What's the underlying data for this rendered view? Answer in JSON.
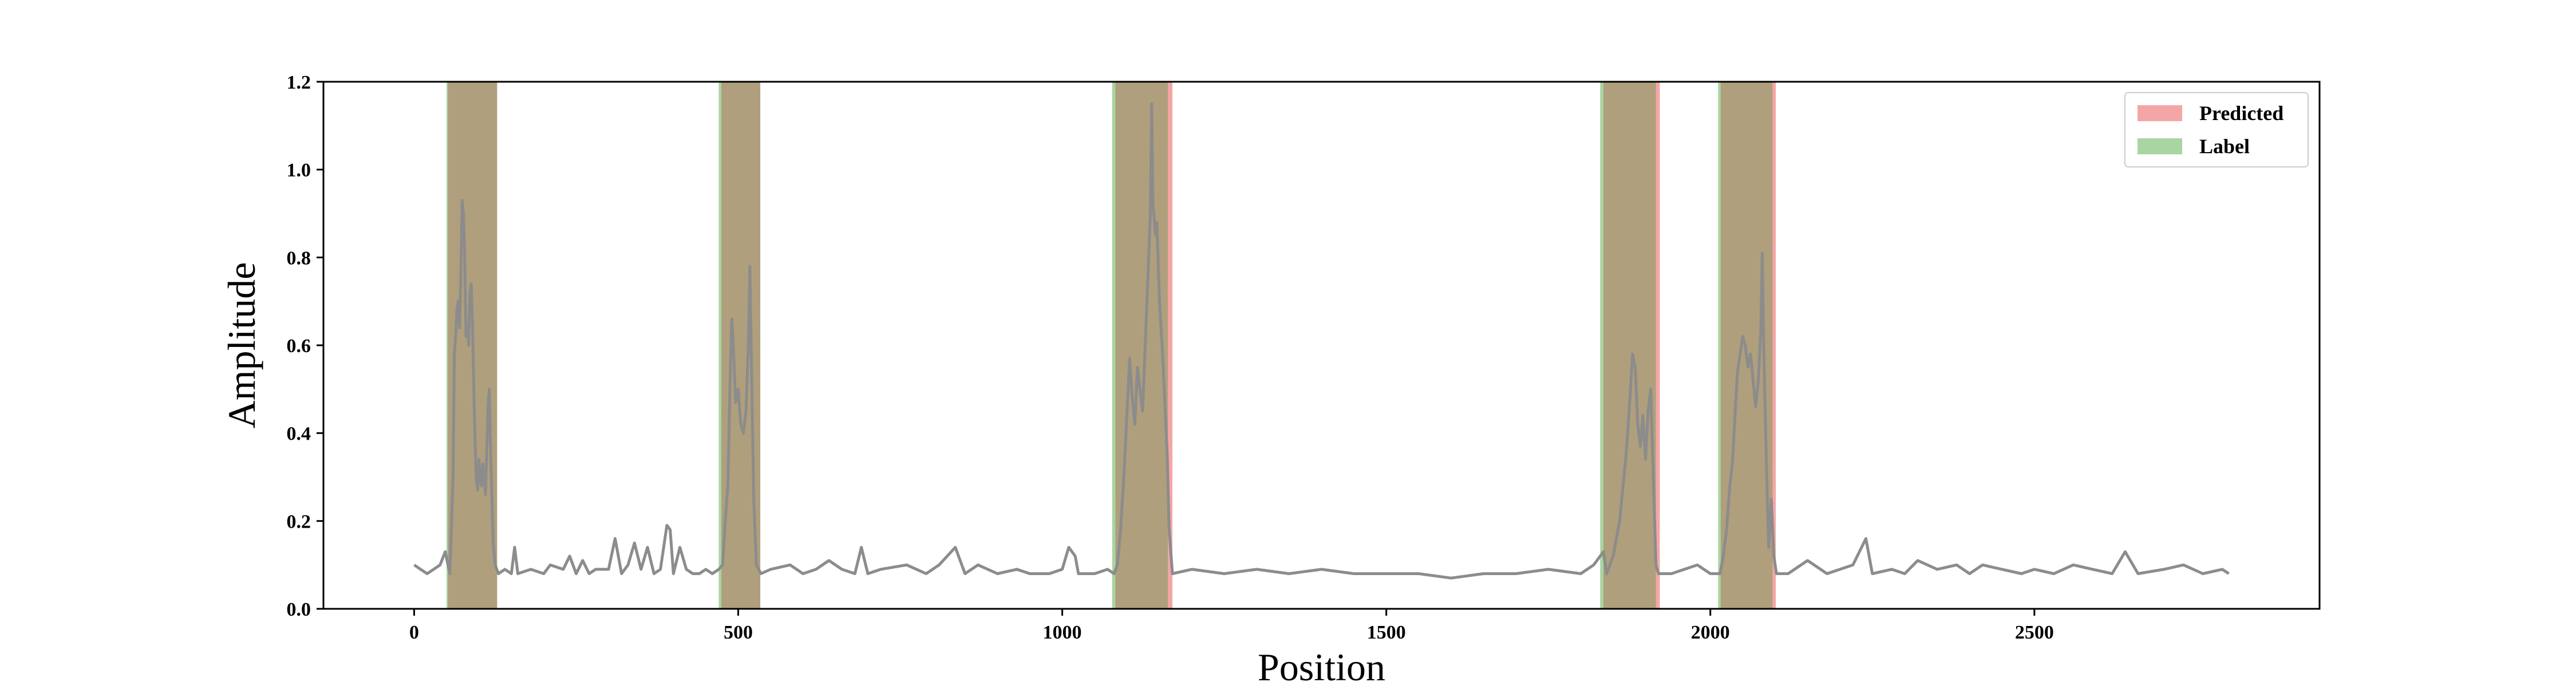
{
  "chart_data": {
    "type": "line",
    "title": "",
    "xlabel": "Position",
    "ylabel": "Amplitude",
    "xlim": [
      -140,
      2940
    ],
    "ylim": [
      0.0,
      1.2
    ],
    "xticks": [
      0,
      500,
      1000,
      1500,
      2000,
      2500
    ],
    "yticks": [
      0.0,
      0.2,
      0.4,
      0.6,
      0.8,
      1.0,
      1.2
    ],
    "ytick_labels": [
      "0.0",
      "0.2",
      "0.4",
      "0.6",
      "0.8",
      "1.0",
      "1.2"
    ],
    "grid": false,
    "legend_position": "top-right",
    "legend": [
      {
        "name": "Predicted",
        "color": "#f4a6a6"
      },
      {
        "name": "Label",
        "color": "#a8d5a2"
      }
    ],
    "overlap_color": "#b09f7c",
    "series": [
      {
        "color": "#8c8c8c",
        "points": [
          [
            0,
            0.1
          ],
          [
            10,
            0.09
          ],
          [
            20,
            0.08
          ],
          [
            30,
            0.09
          ],
          [
            40,
            0.1
          ],
          [
            48,
            0.13
          ],
          [
            55,
            0.08
          ],
          [
            60,
            0.3
          ],
          [
            62,
            0.58
          ],
          [
            64,
            0.62
          ],
          [
            66,
            0.68
          ],
          [
            68,
            0.7
          ],
          [
            70,
            0.64
          ],
          [
            72,
            0.75
          ],
          [
            74,
            0.93
          ],
          [
            76,
            0.9
          ],
          [
            78,
            0.8
          ],
          [
            80,
            0.62
          ],
          [
            82,
            0.65
          ],
          [
            84,
            0.6
          ],
          [
            86,
            0.72
          ],
          [
            88,
            0.74
          ],
          [
            90,
            0.65
          ],
          [
            92,
            0.5
          ],
          [
            94,
            0.38
          ],
          [
            96,
            0.29
          ],
          [
            98,
            0.27
          ],
          [
            100,
            0.34
          ],
          [
            102,
            0.3
          ],
          [
            104,
            0.28
          ],
          [
            106,
            0.33
          ],
          [
            108,
            0.3
          ],
          [
            110,
            0.26
          ],
          [
            112,
            0.36
          ],
          [
            114,
            0.46
          ],
          [
            116,
            0.5
          ],
          [
            118,
            0.35
          ],
          [
            120,
            0.25
          ],
          [
            122,
            0.15
          ],
          [
            125,
            0.1
          ],
          [
            130,
            0.08
          ],
          [
            140,
            0.09
          ],
          [
            150,
            0.08
          ],
          [
            155,
            0.14
          ],
          [
            160,
            0.08
          ],
          [
            180,
            0.09
          ],
          [
            200,
            0.08
          ],
          [
            210,
            0.1
          ],
          [
            230,
            0.09
          ],
          [
            240,
            0.12
          ],
          [
            250,
            0.08
          ],
          [
            260,
            0.11
          ],
          [
            270,
            0.08
          ],
          [
            280,
            0.09
          ],
          [
            300,
            0.09
          ],
          [
            310,
            0.16
          ],
          [
            320,
            0.08
          ],
          [
            330,
            0.1
          ],
          [
            340,
            0.15
          ],
          [
            350,
            0.09
          ],
          [
            360,
            0.14
          ],
          [
            370,
            0.08
          ],
          [
            380,
            0.09
          ],
          [
            390,
            0.19
          ],
          [
            395,
            0.18
          ],
          [
            400,
            0.08
          ],
          [
            410,
            0.14
          ],
          [
            420,
            0.09
          ],
          [
            430,
            0.08
          ],
          [
            440,
            0.08
          ],
          [
            450,
            0.09
          ],
          [
            460,
            0.08
          ],
          [
            470,
            0.09
          ],
          [
            476,
            0.1
          ],
          [
            480,
            0.2
          ],
          [
            484,
            0.28
          ],
          [
            488,
            0.55
          ],
          [
            490,
            0.66
          ],
          [
            492,
            0.62
          ],
          [
            496,
            0.47
          ],
          [
            500,
            0.5
          ],
          [
            504,
            0.42
          ],
          [
            508,
            0.4
          ],
          [
            512,
            0.45
          ],
          [
            516,
            0.62
          ],
          [
            518,
            0.78
          ],
          [
            520,
            0.6
          ],
          [
            524,
            0.25
          ],
          [
            528,
            0.1
          ],
          [
            535,
            0.08
          ],
          [
            550,
            0.09
          ],
          [
            580,
            0.1
          ],
          [
            600,
            0.08
          ],
          [
            620,
            0.09
          ],
          [
            640,
            0.11
          ],
          [
            660,
            0.09
          ],
          [
            680,
            0.08
          ],
          [
            690,
            0.14
          ],
          [
            700,
            0.08
          ],
          [
            720,
            0.09
          ],
          [
            760,
            0.1
          ],
          [
            790,
            0.08
          ],
          [
            810,
            0.1
          ],
          [
            835,
            0.14
          ],
          [
            850,
            0.08
          ],
          [
            870,
            0.1
          ],
          [
            900,
            0.08
          ],
          [
            930,
            0.09
          ],
          [
            950,
            0.08
          ],
          [
            980,
            0.08
          ],
          [
            1000,
            0.09
          ],
          [
            1010,
            0.14
          ],
          [
            1020,
            0.12
          ],
          [
            1025,
            0.08
          ],
          [
            1050,
            0.08
          ],
          [
            1070,
            0.09
          ],
          [
            1080,
            0.08
          ],
          [
            1085,
            0.1
          ],
          [
            1090,
            0.18
          ],
          [
            1095,
            0.3
          ],
          [
            1100,
            0.45
          ],
          [
            1104,
            0.57
          ],
          [
            1108,
            0.48
          ],
          [
            1112,
            0.42
          ],
          [
            1116,
            0.55
          ],
          [
            1120,
            0.5
          ],
          [
            1124,
            0.45
          ],
          [
            1128,
            0.6
          ],
          [
            1132,
            0.75
          ],
          [
            1136,
            0.9
          ],
          [
            1138,
            1.15
          ],
          [
            1140,
            0.92
          ],
          [
            1144,
            0.85
          ],
          [
            1146,
            0.88
          ],
          [
            1150,
            0.7
          ],
          [
            1154,
            0.6
          ],
          [
            1158,
            0.48
          ],
          [
            1162,
            0.35
          ],
          [
            1165,
            0.18
          ],
          [
            1170,
            0.08
          ],
          [
            1200,
            0.09
          ],
          [
            1250,
            0.08
          ],
          [
            1300,
            0.09
          ],
          [
            1350,
            0.08
          ],
          [
            1400,
            0.09
          ],
          [
            1450,
            0.08
          ],
          [
            1500,
            0.08
          ],
          [
            1550,
            0.08
          ],
          [
            1600,
            0.07
          ],
          [
            1650,
            0.08
          ],
          [
            1700,
            0.08
          ],
          [
            1750,
            0.09
          ],
          [
            1800,
            0.08
          ],
          [
            1820,
            0.1
          ],
          [
            1835,
            0.13
          ],
          [
            1840,
            0.08
          ],
          [
            1850,
            0.12
          ],
          [
            1860,
            0.2
          ],
          [
            1870,
            0.35
          ],
          [
            1876,
            0.48
          ],
          [
            1880,
            0.58
          ],
          [
            1884,
            0.55
          ],
          [
            1888,
            0.42
          ],
          [
            1892,
            0.37
          ],
          [
            1896,
            0.44
          ],
          [
            1900,
            0.34
          ],
          [
            1904,
            0.45
          ],
          [
            1908,
            0.5
          ],
          [
            1912,
            0.3
          ],
          [
            1916,
            0.1
          ],
          [
            1920,
            0.08
          ],
          [
            1940,
            0.08
          ],
          [
            1960,
            0.09
          ],
          [
            1980,
            0.1
          ],
          [
            2000,
            0.08
          ],
          [
            2015,
            0.08
          ],
          [
            2020,
            0.12
          ],
          [
            2025,
            0.18
          ],
          [
            2030,
            0.28
          ],
          [
            2034,
            0.33
          ],
          [
            2038,
            0.44
          ],
          [
            2042,
            0.54
          ],
          [
            2046,
            0.58
          ],
          [
            2050,
            0.62
          ],
          [
            2054,
            0.6
          ],
          [
            2058,
            0.55
          ],
          [
            2062,
            0.58
          ],
          [
            2066,
            0.52
          ],
          [
            2070,
            0.46
          ],
          [
            2074,
            0.52
          ],
          [
            2078,
            0.64
          ],
          [
            2080,
            0.81
          ],
          [
            2083,
            0.55
          ],
          [
            2087,
            0.3
          ],
          [
            2090,
            0.14
          ],
          [
            2094,
            0.25
          ],
          [
            2098,
            0.12
          ],
          [
            2102,
            0.08
          ],
          [
            2120,
            0.08
          ],
          [
            2150,
            0.11
          ],
          [
            2180,
            0.08
          ],
          [
            2200,
            0.09
          ],
          [
            2220,
            0.1
          ],
          [
            2240,
            0.16
          ],
          [
            2250,
            0.08
          ],
          [
            2280,
            0.09
          ],
          [
            2300,
            0.08
          ],
          [
            2320,
            0.11
          ],
          [
            2350,
            0.09
          ],
          [
            2380,
            0.1
          ],
          [
            2400,
            0.08
          ],
          [
            2420,
            0.1
          ],
          [
            2450,
            0.09
          ],
          [
            2480,
            0.08
          ],
          [
            2500,
            0.09
          ],
          [
            2530,
            0.08
          ],
          [
            2560,
            0.1
          ],
          [
            2590,
            0.09
          ],
          [
            2620,
            0.08
          ],
          [
            2640,
            0.13
          ],
          [
            2660,
            0.08
          ],
          [
            2700,
            0.09
          ],
          [
            2730,
            0.1
          ],
          [
            2760,
            0.08
          ],
          [
            2790,
            0.09
          ],
          [
            2800,
            0.08
          ]
        ]
      }
    ],
    "regions": [
      {
        "type": "predicted",
        "start": 52,
        "end": 128
      },
      {
        "type": "label",
        "start": 50,
        "end": 128
      },
      {
        "type": "predicted",
        "start": 474,
        "end": 534
      },
      {
        "type": "label",
        "start": 470,
        "end": 534
      },
      {
        "type": "predicted",
        "start": 1082,
        "end": 1170
      },
      {
        "type": "label",
        "start": 1077,
        "end": 1163
      },
      {
        "type": "predicted",
        "start": 1835,
        "end": 1922
      },
      {
        "type": "label",
        "start": 1830,
        "end": 1916
      },
      {
        "type": "predicted",
        "start": 2016,
        "end": 2101
      },
      {
        "type": "label",
        "start": 2012,
        "end": 2096
      }
    ]
  }
}
